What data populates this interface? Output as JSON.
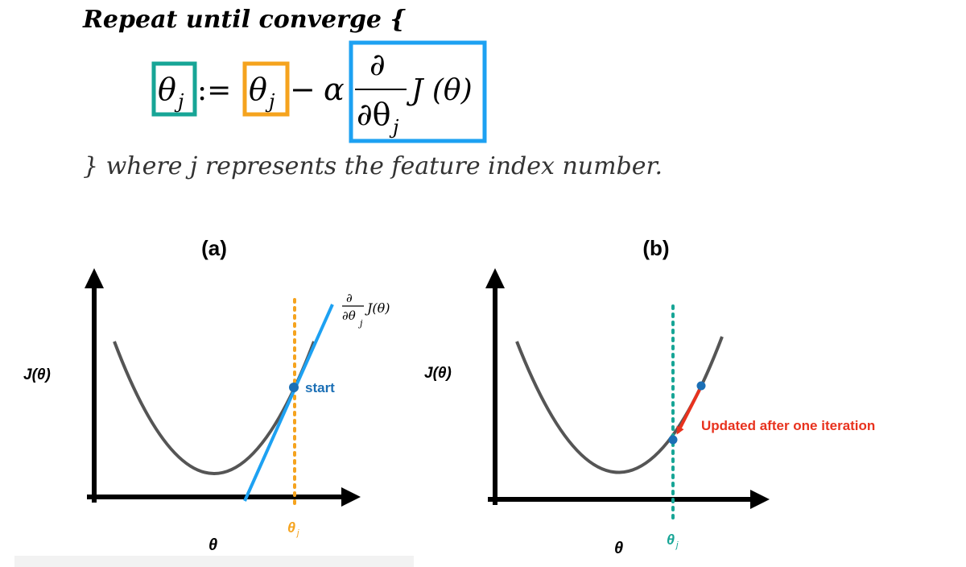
{
  "algorithm": {
    "header": "Repeat until converge {",
    "footer": "} where j represents the feature index number."
  },
  "formula": {
    "lhs": "θ",
    "lhs_sub": "j",
    "assign": ":=",
    "rhs_theta": "θ",
    "rhs_sub": "j",
    "minus": "−",
    "alpha": "α",
    "partial": "∂",
    "partial_theta": "∂θ",
    "partial_sub": "j",
    "cost": "J (θ)"
  },
  "panel_a": {
    "title": "(a)",
    "ylabel": "J(θ)",
    "xlabel": "θ",
    "theta_label": "θ",
    "theta_sub": "j",
    "point_label": "start",
    "tangent_label": {
      "partial": "∂",
      "partial_theta": "∂θ",
      "partial_sub": "j",
      "cost": "J(θ)"
    }
  },
  "panel_b": {
    "title": "(b)",
    "ylabel": "J(θ)",
    "xlabel": "θ",
    "theta_label": "θ",
    "theta_sub": "j",
    "arrow_label": "Updated after one iteration"
  },
  "colors": {
    "teal": "#17a596",
    "orange": "#f5a31e",
    "blue": "#1da1f2",
    "point_blue": "#1b6fb5",
    "red": "#e8321e",
    "curve": "#555555",
    "axis": "#000000"
  }
}
